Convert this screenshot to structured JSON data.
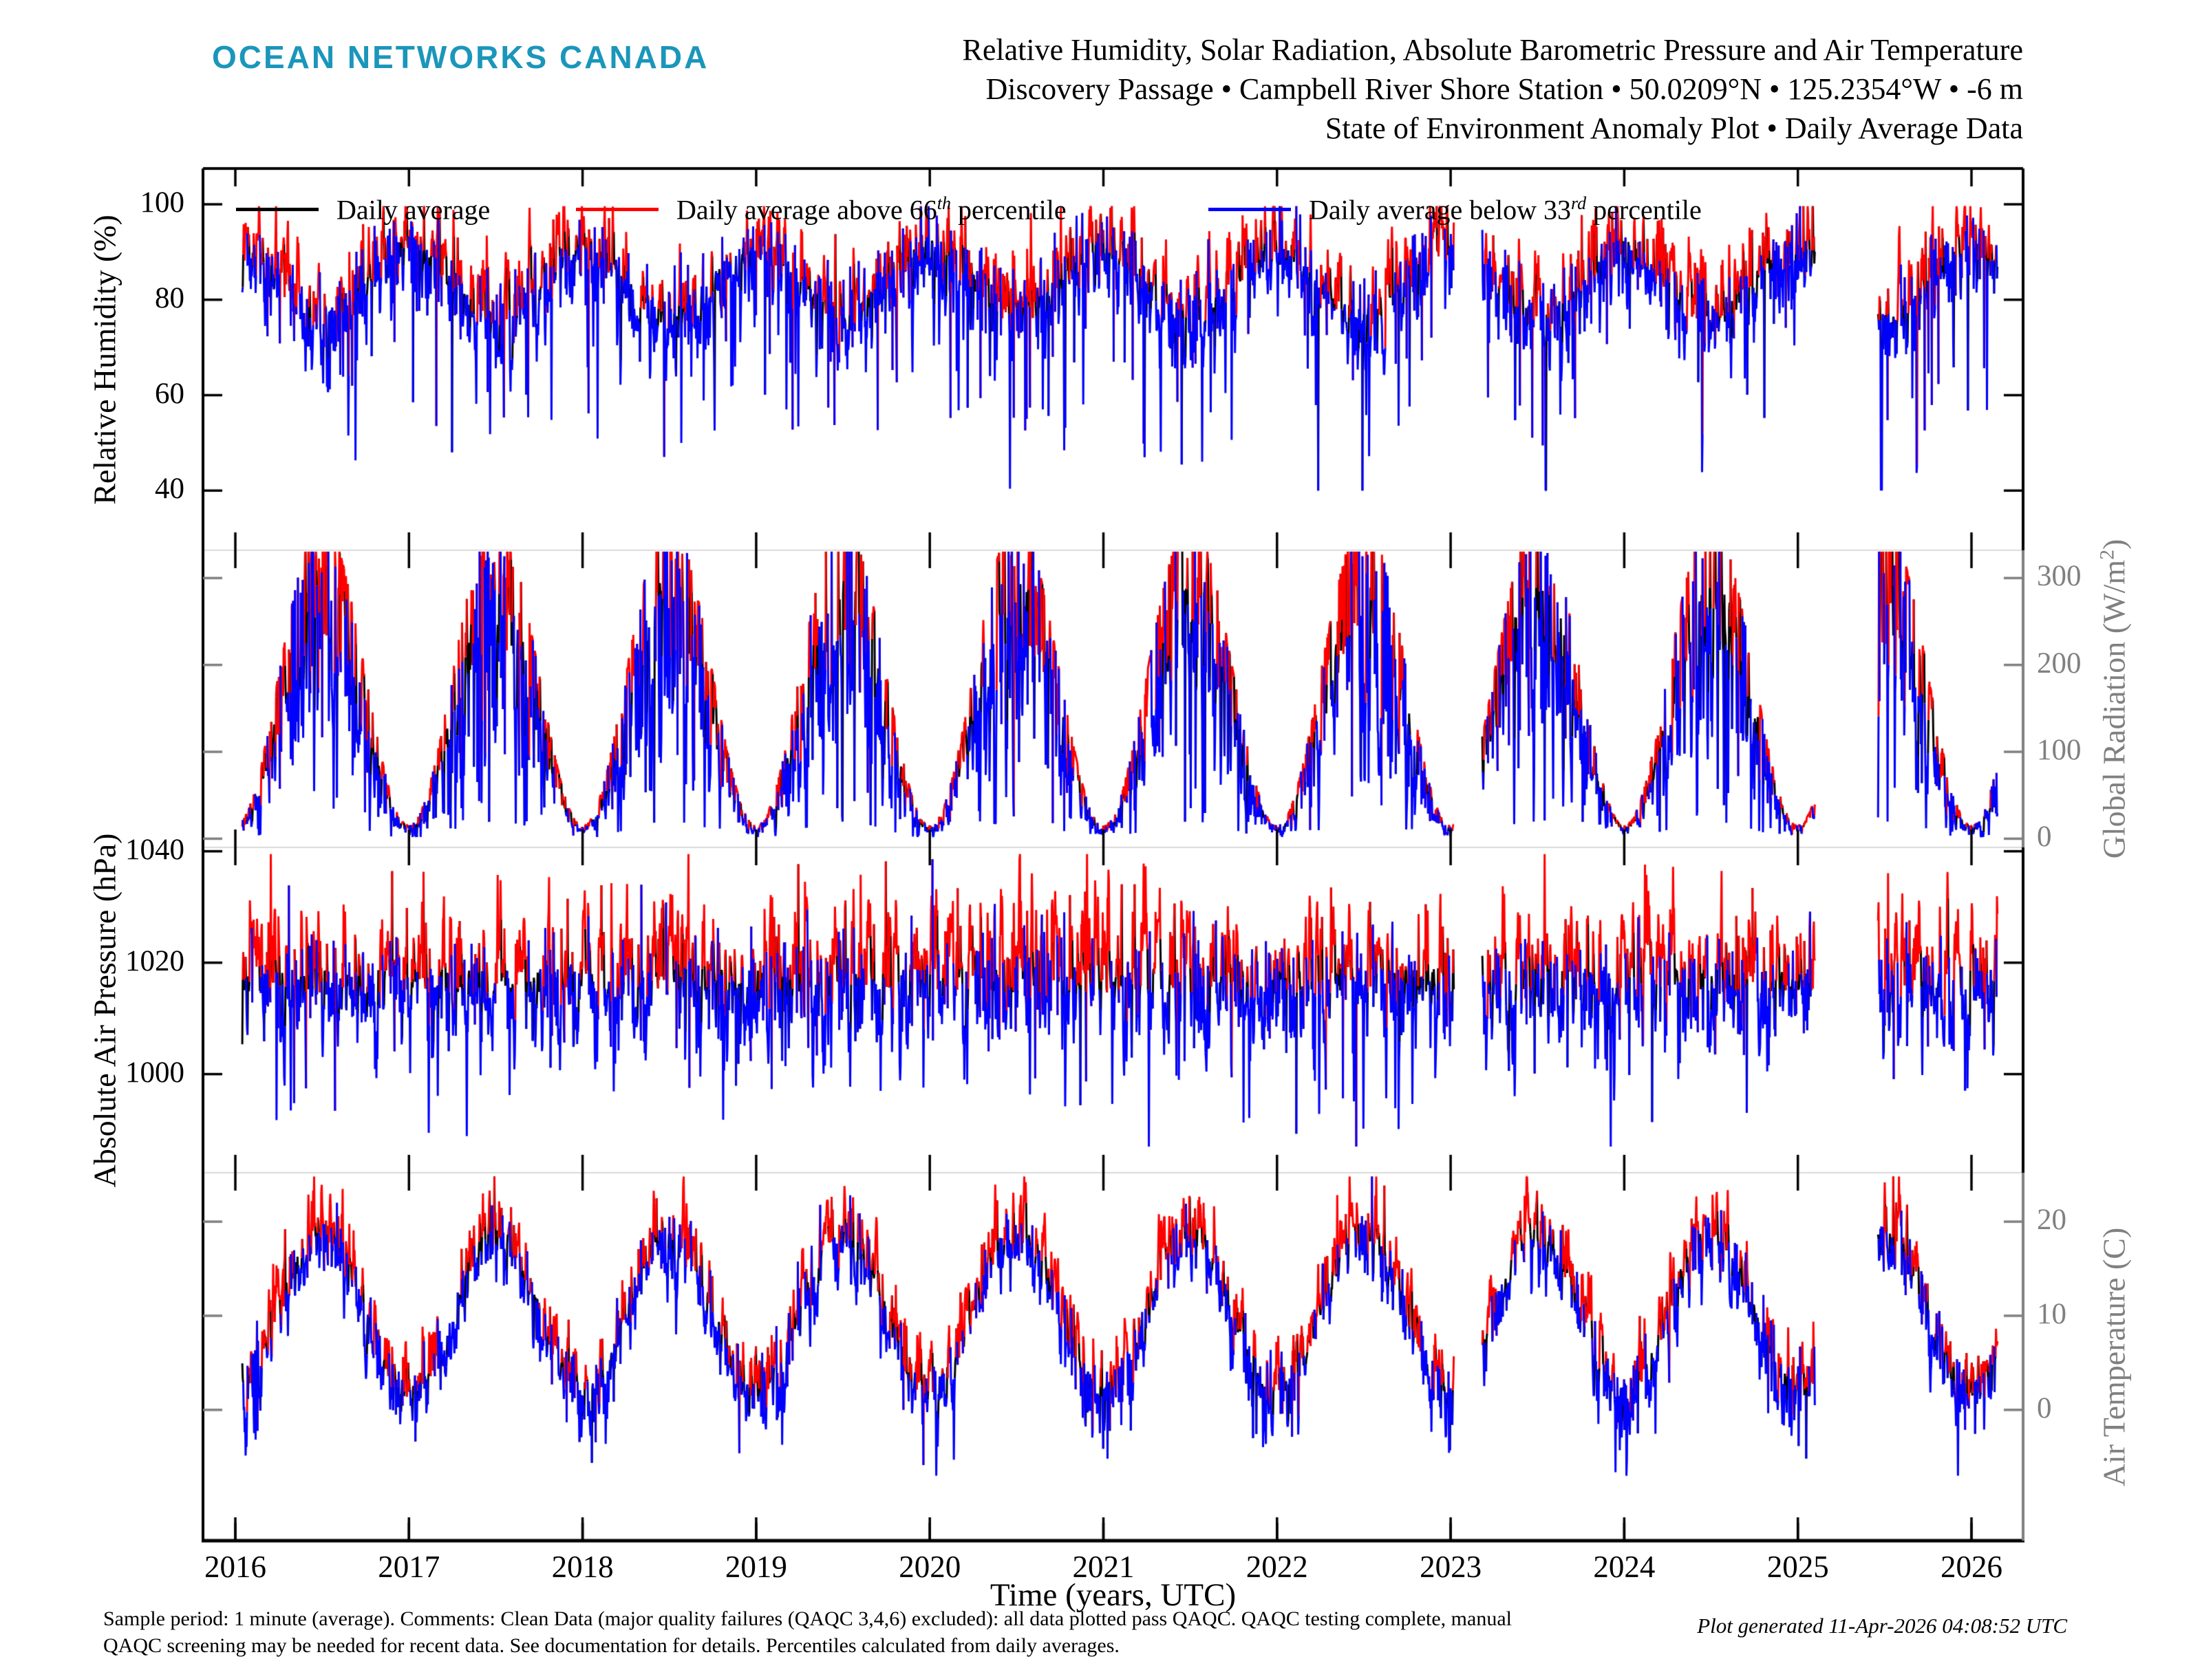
{
  "header": {
    "logo": "OCEAN NETWORKS CANADA",
    "logo_color": "#1b96bb",
    "title_line1": "Relative Humidity, Solar Radiation, Absolute Barometric Pressure and Air Temperature",
    "title_line2": "Discovery Passage • Campbell River Shore Station • 50.0209°N • 125.2354°W • -6 m",
    "title_line3": "State of Environment Anomaly Plot • Daily Average Data"
  },
  "legend": {
    "items": [
      {
        "label_pre": "Daily average",
        "label_sup": "",
        "label_post": "",
        "color": "#000000"
      },
      {
        "label_pre": "Daily average above 66",
        "label_sup": "th",
        "label_post": " percentile",
        "color": "#ff0000"
      },
      {
        "label_pre": "Daily average below 33",
        "label_sup": "rd",
        "label_post": " percentile",
        "color": "#0000ff"
      }
    ]
  },
  "chart_data": {
    "type": "line",
    "x_axis": {
      "label": "Time (years, UTC)",
      "ticks": [
        2016,
        2017,
        2018,
        2019,
        2020,
        2021,
        2022,
        2023,
        2024,
        2025,
        2026
      ],
      "xlim": [
        2015.82,
        2026.3
      ]
    },
    "colors": {
      "daily": "#000000",
      "above": "#ff0000",
      "below": "#0000ff",
      "secondary_axis": "#808080",
      "panel_divider": "#d9d9d9"
    },
    "sampling": {
      "start": 2016.04,
      "end": 2026.15,
      "per_year": 365,
      "gaps": [
        [
          2023.02,
          2023.18
        ],
        [
          2025.1,
          2025.46
        ]
      ]
    },
    "panels": [
      {
        "id": "humidity",
        "ylabel_pre": "Relative Humidity (%)",
        "ylabel_sup": "",
        "ylabel_post": "",
        "side": "left",
        "ylim": [
          27.5,
          107.5
        ],
        "yticks": [
          40,
          60,
          80,
          100
        ],
        "model": {
          "type": "additive",
          "mean": 83.5,
          "amp": 7,
          "sigma": 4.4,
          "ar": 0.55,
          "jitter": 2.0,
          "thresh": 2.0,
          "clip_min": 40,
          "clip_max": 99.6,
          "ev_neg_prob": 0.055,
          "ev_neg_min": 8,
          "ev_neg_max": 34,
          "ev_neg_season": "",
          "ev_pos_prob": 0,
          "ev_pos_min": 0,
          "ev_pos_max": 0,
          "ev_pos_season": ""
        }
      },
      {
        "id": "radiation",
        "ylabel_pre": "Global Radiation (W/m",
        "ylabel_sup": "2",
        "ylabel_post": ")",
        "side": "right",
        "ylim": [
          -10,
          332
        ],
        "yticks": [
          0,
          100,
          200,
          300
        ],
        "model": {
          "type": "scaled",
          "mean": 172,
          "amp": 158,
          "sigma": 0.85,
          "ar": 0.5,
          "jitter": 0.3,
          "rel_base": 0.8,
          "rel_spread": 0.27,
          "rel_min": 0.06,
          "rel_max": 1.1,
          "thresh": 0.12,
          "clip_min": 2,
          "ev_neg_prob": 0.06,
          "ev_neg_min": 0.25,
          "ev_neg_max": 0.62
        }
      },
      {
        "id": "pressure",
        "ylabel_pre": "Absolute Air Pressure (hPa)",
        "ylabel_sup": "",
        "ylabel_post": "",
        "side": "left",
        "ylim": [
          982.3,
          1040.7
        ],
        "yticks": [
          1000,
          1020,
          1040
        ],
        "model": {
          "type": "additive",
          "mean": 1016.8,
          "amp": 0,
          "sigma": 5.0,
          "ar": 0.62,
          "jitter": 1.8,
          "thresh": 2.2,
          "clip_min": 987,
          "clip_max": 1039.5,
          "ev_neg_prob": 0.045,
          "ev_neg_min": 6,
          "ev_neg_max": 22,
          "ev_neg_season": "",
          "ev_pos_prob": 0.03,
          "ev_pos_min": 5,
          "ev_pos_max": 17,
          "ev_pos_season": ""
        }
      },
      {
        "id": "temperature",
        "ylabel_pre": "Air Temperature (C)",
        "ylabel_sup": "",
        "ylabel_post": "",
        "side": "right",
        "ylim": [
          -13.9,
          25.2
        ],
        "yticks": [
          0,
          10,
          20
        ],
        "model": {
          "type": "additive",
          "mean": 10.3,
          "amp": -8.2,
          "sigma": 1.9,
          "ar": 0.6,
          "jitter": 0.85,
          "thresh": 0.95,
          "clip_min": -7,
          "clip_max": 24.8,
          "ev_neg_prob": 0.055,
          "ev_neg_min": 2.5,
          "ev_neg_max": 8,
          "ev_neg_season": "winter",
          "ev_pos_prob": 0.035,
          "ev_pos_min": 1.5,
          "ev_pos_max": 5,
          "ev_pos_season": "summer"
        }
      }
    ]
  },
  "footer": {
    "line1": "Sample period: 1 minute (average). Comments: Clean Data (major quality failures (QAQC 3,4,6) excluded): all data plotted pass QAQC. QAQC testing complete, manual",
    "line2": "QAQC screening may be needed for recent data. See documentation for details. Percentiles calculated from daily averages.",
    "generated": "Plot generated 11-Apr-2026 04:08:52 UTC"
  }
}
